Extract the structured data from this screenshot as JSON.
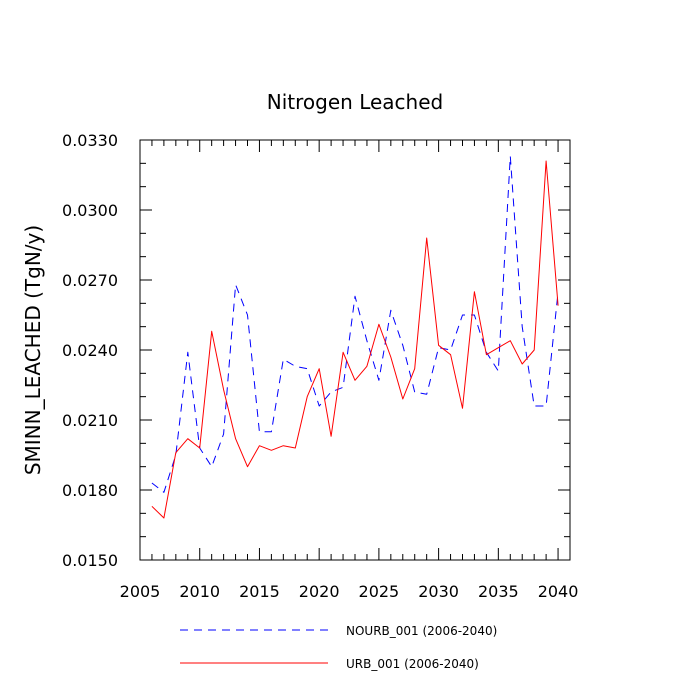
{
  "chart_data": {
    "type": "line",
    "title": "Nitrogen Leached",
    "xlabel": "",
    "ylabel": "SMINN_LEACHED  (TgN/y)",
    "xlim": [
      2005,
      2041
    ],
    "ylim": [
      0.015,
      0.033
    ],
    "x_ticks": [
      2005,
      2010,
      2015,
      2020,
      2025,
      2030,
      2035,
      2040
    ],
    "x_tick_labels": [
      "2005",
      "2010",
      "2015",
      "2020",
      "2025",
      "2030",
      "2035",
      "2040"
    ],
    "y_ticks": [
      0.015,
      0.018,
      0.021,
      0.024,
      0.027,
      0.03,
      0.033
    ],
    "y_tick_labels": [
      "0.0150",
      "0.0180",
      "0.0210",
      "0.0240",
      "0.0270",
      "0.0300",
      "0.0330"
    ],
    "x": [
      2006,
      2007,
      2008,
      2009,
      2010,
      2011,
      2012,
      2013,
      2014,
      2015,
      2016,
      2017,
      2018,
      2019,
      2020,
      2021,
      2022,
      2023,
      2024,
      2025,
      2026,
      2027,
      2028,
      2029,
      2030,
      2031,
      2032,
      2033,
      2034,
      2035,
      2036,
      2037,
      2038,
      2039,
      2040
    ],
    "series": [
      {
        "name": "NOURB_001 (2006-2040)",
        "color": "#0000ff",
        "dashed": true,
        "values": [
          0.0183,
          0.0179,
          0.0195,
          0.0239,
          0.0198,
          0.019,
          0.0204,
          0.0268,
          0.0255,
          0.0205,
          0.0205,
          0.0236,
          0.0233,
          0.0232,
          0.0216,
          0.0222,
          0.0224,
          0.0263,
          0.0244,
          0.0227,
          0.0257,
          0.0242,
          0.0222,
          0.0221,
          0.0241,
          0.024,
          0.0255,
          0.0255,
          0.0239,
          0.0231,
          0.0323,
          0.025,
          0.0216,
          0.0216,
          0.0265
        ]
      },
      {
        "name": "URB_001 (2006-2040)",
        "color": "#ff0000",
        "dashed": false,
        "values": [
          0.0173,
          0.0168,
          0.0196,
          0.0202,
          0.0198,
          0.0248,
          0.0223,
          0.0202,
          0.019,
          0.0199,
          0.0197,
          0.0199,
          0.0198,
          0.022,
          0.0232,
          0.0203,
          0.0239,
          0.0227,
          0.0233,
          0.0251,
          0.0237,
          0.0219,
          0.0232,
          0.0288,
          0.0242,
          0.0238,
          0.0215,
          0.0265,
          0.0238,
          0.0241,
          0.0244,
          0.0234,
          0.024,
          0.0321,
          0.0259
        ]
      }
    ],
    "legend": "bottom",
    "grid": false
  }
}
